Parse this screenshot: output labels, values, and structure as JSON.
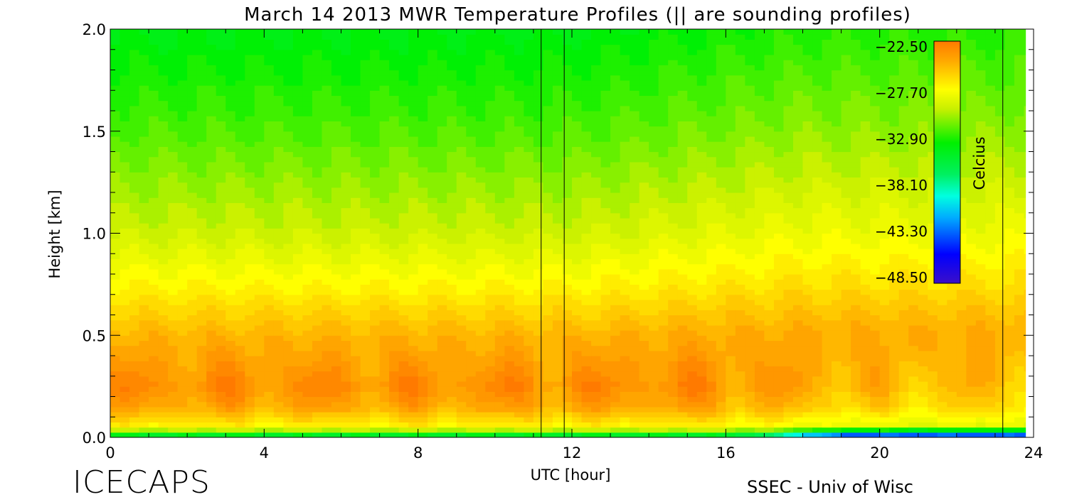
{
  "chart_data": {
    "type": "heatmap",
    "title": "March 14 2013 MWR Temperature Profiles (|| are sounding profiles)",
    "xlabel": "UTC [hour]",
    "ylabel": "Height [km]",
    "xlim": [
      0,
      24
    ],
    "ylim": [
      0,
      2
    ],
    "x_ticks": [
      "0",
      "4",
      "8",
      "12",
      "16",
      "20",
      "24"
    ],
    "y_ticks": [
      "0.0",
      "0.5",
      "1.0",
      "1.5",
      "2.0"
    ],
    "sounding_times": [
      11.2,
      11.8,
      23.2
    ],
    "colorbar": {
      "label": "Celcius",
      "range": [
        -48.5,
        -22.5
      ],
      "ticks": [
        "-22.50",
        "-27.70",
        "-32.90",
        "-38.10",
        "-43.30",
        "-48.50"
      ]
    },
    "profiles": [
      {
        "height_km": 0.0,
        "temp_c": -37.0
      },
      {
        "height_km": 0.05,
        "temp_c": -27.5
      },
      {
        "height_km": 0.15,
        "temp_c": -24.5
      },
      {
        "height_km": 0.25,
        "temp_c": -23.5
      },
      {
        "height_km": 0.5,
        "temp_c": -25.0
      },
      {
        "height_km": 0.75,
        "temp_c": -27.5
      },
      {
        "height_km": 1.0,
        "temp_c": -29.5
      },
      {
        "height_km": 1.5,
        "temp_c": -32.0
      },
      {
        "height_km": 2.0,
        "temp_c": -34.0
      }
    ]
  },
  "footer": {
    "brand": "ICECAPS",
    "credit": "SSEC - Univ of Wisc"
  },
  "colors": {
    "colormap": [
      "#3b0fc9",
      "#0000ff",
      "#00aaff",
      "#00ffe0",
      "#00f060",
      "#00f000",
      "#c8f000",
      "#ffff00",
      "#ffa800",
      "#ff7a00"
    ]
  }
}
